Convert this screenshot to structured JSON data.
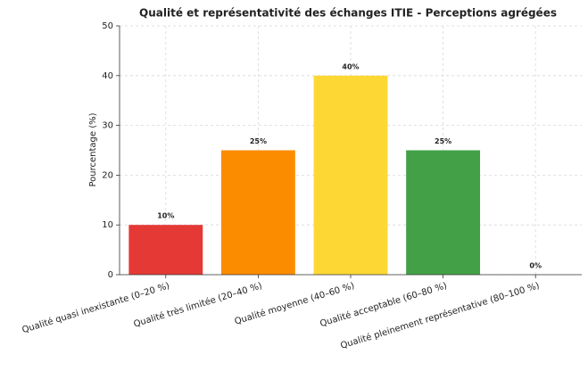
{
  "chart_data": {
    "type": "bar",
    "title": "Qualité et représentativité des échanges ITIE - Perceptions agrégées",
    "y_label": "Pourcentage (%)",
    "categories": [
      "Qualité quasi inexistante (0–20 %)",
      "Qualité très limitée (20–40 %)",
      "Qualité moyenne (40–60 %)",
      "Qualité acceptable (60–80 %)",
      "Qualité pleinement représentative (80–100 %)"
    ],
    "values": [
      10,
      25,
      40,
      25,
      0
    ],
    "value_labels": [
      "10%",
      "25%",
      "40%",
      "25%",
      "0%"
    ],
    "colors": [
      "#e53935",
      "#fb8c00",
      "#fdd835",
      "#43a047",
      "#1e88e5"
    ],
    "ylim": [
      0,
      50
    ],
    "yticks": [
      0,
      10,
      20,
      30,
      40,
      50
    ],
    "grid": true
  }
}
